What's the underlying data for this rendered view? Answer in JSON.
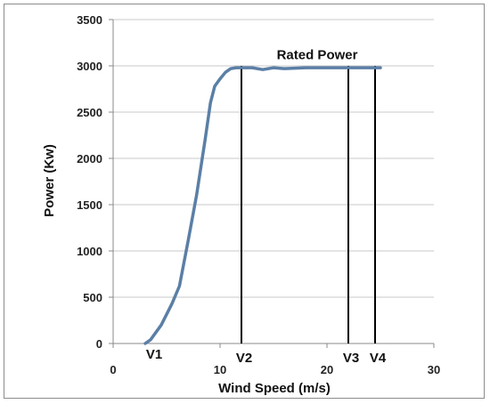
{
  "chart_data": {
    "type": "line",
    "title": "",
    "xlabel": "Wind  Speed (m/s)",
    "ylabel": "Power  (Kw)",
    "xlim": [
      0,
      30
    ],
    "ylim": [
      0,
      3500
    ],
    "x_ticks": [
      0,
      10,
      20,
      30
    ],
    "y_ticks": [
      0,
      500,
      1000,
      1500,
      2000,
      2500,
      3000,
      3500
    ],
    "grid": "horizontal",
    "colors": {
      "curve": "#5b7fa6",
      "markers": "#000000",
      "grid": "#c8c8c8"
    },
    "series": [
      {
        "x": [
          3,
          3.5,
          4.5,
          5.5,
          6.2,
          7,
          7.8,
          8.6,
          9.1,
          9.5,
          10,
          10.5,
          11,
          11.5,
          12,
          13,
          14,
          15,
          16,
          18,
          20,
          22,
          25
        ],
        "values": [
          0,
          40,
          200,
          430,
          620,
          1100,
          1600,
          2200,
          2600,
          2780,
          2860,
          2930,
          2970,
          2980,
          2980,
          2980,
          2960,
          2980,
          2970,
          2980,
          2980,
          2980,
          2980
        ]
      }
    ],
    "vertical_markers": [
      {
        "label": "V2",
        "x": 12
      },
      {
        "label": "V3",
        "x": 22
      },
      {
        "label": "V4",
        "x": 24.5
      }
    ],
    "extra_labels": [
      {
        "label": "V1",
        "x": 3
      }
    ],
    "annotations": [
      {
        "text": "Rated Power",
        "x": 15.3,
        "y": 3070
      }
    ]
  }
}
